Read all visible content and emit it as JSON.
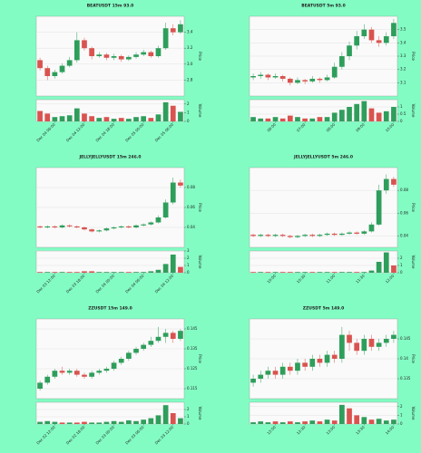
{
  "chart_data": [
    {
      "type": "candlestick",
      "title": "BEATUSDT 15m 93.0",
      "ylabel": "Price",
      "y2label": "Volume",
      "up_color": "#2e9e5b",
      "down_color": "#d9534f",
      "grid": true,
      "categories": [
        null,
        null,
        "Dec 04 06:00",
        null,
        null,
        null,
        "Dec 04 12:00",
        null,
        null,
        null,
        "Dec 04 18:00",
        null,
        null,
        null,
        "Dec 05 00:00",
        null,
        null,
        null,
        "Dec 05 06:00",
        null
      ],
      "open": [
        3.05,
        2.95,
        2.85,
        2.9,
        2.98,
        3.05,
        3.3,
        3.2,
        3.1,
        3.12,
        3.08,
        3.1,
        3.06,
        3.09,
        3.12,
        3.15,
        3.1,
        3.2,
        3.45,
        3.4
      ],
      "high": [
        3.08,
        2.98,
        2.93,
        3.01,
        3.09,
        3.4,
        3.33,
        3.22,
        3.15,
        3.14,
        3.13,
        3.12,
        3.11,
        3.15,
        3.18,
        3.17,
        3.23,
        3.52,
        3.5,
        3.55
      ],
      "low": [
        2.92,
        2.8,
        2.82,
        2.88,
        2.96,
        3.02,
        3.17,
        3.06,
        3.08,
        3.05,
        3.05,
        3.03,
        3.04,
        3.07,
        3.1,
        3.08,
        3.08,
        3.18,
        3.36,
        3.38
      ],
      "close": [
        2.95,
        2.85,
        2.9,
        2.98,
        3.05,
        3.3,
        3.2,
        3.1,
        3.12,
        3.08,
        3.1,
        3.06,
        3.09,
        3.12,
        3.15,
        3.1,
        3.2,
        3.45,
        3.4,
        3.5
      ],
      "volume": [
        1.2,
        0.9,
        0.5,
        0.6,
        0.7,
        1.5,
        0.9,
        0.6,
        0.4,
        0.5,
        0.3,
        0.4,
        0.3,
        0.5,
        0.6,
        0.4,
        0.8,
        2.2,
        1.8,
        1.1
      ],
      "ylim": [
        2.6,
        3.6
      ],
      "yticks": [
        2.8,
        {
          "value": 3,
          "label": "3.0"
        },
        3.2,
        3.4
      ],
      "y2lim": [
        0,
        2.5
      ],
      "y2ticks": [
        0,
        1,
        2
      ]
    },
    {
      "type": "candlestick",
      "title": "BEATUSDT 5m 93.0",
      "ylabel": "Price",
      "y2label": "Volume",
      "up_color": "#2e9e5b",
      "down_color": "#d9534f",
      "grid": true,
      "categories": [
        null,
        null,
        null,
        "06:00",
        null,
        null,
        null,
        "07:00",
        null,
        null,
        null,
        "08:00",
        null,
        null,
        null,
        "09:00",
        null,
        null,
        null,
        "10:00"
      ],
      "open": [
        3.14,
        3.15,
        3.16,
        3.14,
        3.15,
        3.13,
        3.1,
        3.12,
        3.11,
        3.13,
        3.12,
        3.14,
        3.22,
        3.3,
        3.38,
        3.45,
        3.5,
        3.42,
        3.4,
        3.45
      ],
      "high": [
        3.17,
        3.18,
        3.17,
        3.17,
        3.16,
        3.14,
        3.14,
        3.13,
        3.15,
        3.14,
        3.16,
        3.25,
        3.33,
        3.41,
        3.49,
        3.54,
        3.52,
        3.45,
        3.48,
        3.58
      ],
      "low": [
        3.12,
        3.13,
        3.12,
        3.13,
        3.11,
        3.08,
        3.09,
        3.09,
        3.1,
        3.1,
        3.11,
        3.13,
        3.2,
        3.27,
        3.35,
        3.43,
        3.4,
        3.37,
        3.38,
        3.43
      ],
      "close": [
        3.15,
        3.16,
        3.14,
        3.15,
        3.13,
        3.1,
        3.12,
        3.11,
        3.13,
        3.12,
        3.14,
        3.22,
        3.3,
        3.38,
        3.45,
        3.5,
        3.42,
        3.4,
        3.45,
        3.55
      ],
      "volume": [
        0.3,
        0.2,
        0.2,
        0.3,
        0.2,
        0.4,
        0.3,
        0.2,
        0.2,
        0.3,
        0.3,
        0.6,
        0.8,
        1.0,
        1.2,
        1.4,
        0.9,
        0.6,
        0.7,
        1.0
      ],
      "ylim": [
        3.0,
        3.6
      ],
      "yticks": [
        3.1,
        3.2,
        3.3,
        3.4,
        3.5
      ],
      "y2lim": [
        0,
        1.5
      ],
      "y2ticks": [
        0,
        0.5,
        1
      ]
    },
    {
      "type": "candlestick",
      "title": "JELLYJELLYUSDT 15m 246.0",
      "ylabel": "Price",
      "y2label": "Volume",
      "up_color": "#2e9e5b",
      "down_color": "#d9534f",
      "grid": true,
      "categories": [
        null,
        null,
        "Dec 03 12:00",
        null,
        null,
        null,
        "Dec 03 18:00",
        null,
        null,
        null,
        "Dec 04 00:00",
        null,
        null,
        null,
        "Dec 04 06:00",
        null,
        null,
        null,
        "Dec 04 12:00",
        null
      ],
      "open": [
        0.041,
        0.04,
        0.041,
        0.04,
        0.042,
        0.041,
        0.04,
        0.038,
        0.036,
        0.037,
        0.039,
        0.04,
        0.041,
        0.04,
        0.042,
        0.043,
        0.045,
        0.05,
        0.065,
        0.085
      ],
      "high": [
        0.042,
        0.042,
        0.042,
        0.043,
        0.043,
        0.042,
        0.041,
        0.039,
        0.038,
        0.04,
        0.041,
        0.042,
        0.042,
        0.043,
        0.044,
        0.046,
        0.052,
        0.068,
        0.09,
        0.088
      ],
      "low": [
        0.039,
        0.039,
        0.039,
        0.039,
        0.04,
        0.039,
        0.037,
        0.035,
        0.035,
        0.036,
        0.038,
        0.039,
        0.039,
        0.039,
        0.041,
        0.042,
        0.044,
        0.049,
        0.063,
        0.08
      ],
      "close": [
        0.04,
        0.041,
        0.04,
        0.042,
        0.041,
        0.04,
        0.038,
        0.036,
        0.037,
        0.039,
        0.04,
        0.041,
        0.04,
        0.042,
        0.043,
        0.045,
        0.05,
        0.065,
        0.085,
        0.082
      ],
      "volume": [
        0.1,
        0.1,
        0.1,
        0.1,
        0.1,
        0.1,
        0.2,
        0.2,
        0.1,
        0.1,
        0.1,
        0.1,
        0.1,
        0.1,
        0.1,
        0.2,
        0.4,
        1.2,
        2.5,
        0.8
      ],
      "ylim": [
        0.02,
        0.1
      ],
      "yticks": [
        0.04,
        0.06,
        0.08
      ],
      "y2lim": [
        0,
        3
      ],
      "y2ticks": [
        0,
        1,
        2,
        3
      ]
    },
    {
      "type": "candlestick",
      "title": "JELLYJELLYUSDT 5m 246.0",
      "ylabel": "Price",
      "y2label": "Volume",
      "up_color": "#2e9e5b",
      "down_color": "#d9534f",
      "grid": true,
      "categories": [
        null,
        null,
        null,
        "10:00",
        null,
        null,
        null,
        "10:30",
        null,
        null,
        null,
        "11:00",
        null,
        null,
        null,
        "11:30",
        null,
        null,
        null,
        "12:00"
      ],
      "open": [
        0.041,
        0.04,
        0.041,
        0.04,
        0.041,
        0.04,
        0.039,
        0.04,
        0.041,
        0.04,
        0.041,
        0.042,
        0.041,
        0.042,
        0.043,
        0.042,
        0.044,
        0.05,
        0.08,
        0.09
      ],
      "high": [
        0.042,
        0.042,
        0.042,
        0.042,
        0.042,
        0.041,
        0.041,
        0.042,
        0.042,
        0.042,
        0.043,
        0.043,
        0.043,
        0.044,
        0.044,
        0.045,
        0.052,
        0.085,
        0.094,
        0.092
      ],
      "low": [
        0.039,
        0.039,
        0.039,
        0.039,
        0.039,
        0.038,
        0.038,
        0.039,
        0.039,
        0.039,
        0.04,
        0.04,
        0.04,
        0.041,
        0.041,
        0.041,
        0.043,
        0.049,
        0.077,
        0.083
      ],
      "close": [
        0.04,
        0.041,
        0.04,
        0.041,
        0.04,
        0.039,
        0.04,
        0.041,
        0.04,
        0.041,
        0.042,
        0.041,
        0.042,
        0.043,
        0.042,
        0.044,
        0.05,
        0.08,
        0.09,
        0.085
      ],
      "volume": [
        0.1,
        0.1,
        0.1,
        0.1,
        0.1,
        0.1,
        0.1,
        0.1,
        0.1,
        0.1,
        0.1,
        0.1,
        0.1,
        0.1,
        0.1,
        0.1,
        0.3,
        1.5,
        2.8,
        1.0
      ],
      "ylim": [
        0.03,
        0.1
      ],
      "yticks": [
        0.04,
        0.06,
        0.08
      ],
      "y2lim": [
        0,
        3
      ],
      "y2ticks": [
        0,
        1,
        2
      ]
    },
    {
      "type": "candlestick",
      "title": "ZZUSDT 15m 149.0",
      "ylabel": "Price",
      "y2label": "Volume",
      "up_color": "#2e9e5b",
      "down_color": "#d9534f",
      "grid": true,
      "categories": [
        null,
        null,
        "Dec 02 12:00",
        null,
        null,
        null,
        "Dec 02 18:00",
        null,
        null,
        null,
        "Dec 03 00:00",
        null,
        null,
        null,
        "Dec 03 06:00",
        null,
        null,
        null,
        "Dec 03 12:00",
        null
      ],
      "open": [
        0.115,
        0.118,
        0.121,
        0.124,
        0.123,
        0.124,
        0.122,
        0.121,
        0.123,
        0.124,
        0.125,
        0.128,
        0.13,
        0.133,
        0.135,
        0.137,
        0.139,
        0.141,
        0.143,
        0.14
      ],
      "high": [
        0.119,
        0.122,
        0.125,
        0.126,
        0.125,
        0.125,
        0.123,
        0.124,
        0.125,
        0.126,
        0.129,
        0.131,
        0.134,
        0.136,
        0.138,
        0.141,
        0.146,
        0.145,
        0.144,
        0.145
      ],
      "low": [
        0.114,
        0.117,
        0.12,
        0.122,
        0.122,
        0.121,
        0.12,
        0.12,
        0.122,
        0.123,
        0.124,
        0.127,
        0.129,
        0.132,
        0.134,
        0.136,
        0.138,
        0.138,
        0.138,
        0.139
      ],
      "close": [
        0.118,
        0.121,
        0.124,
        0.123,
        0.124,
        0.122,
        0.121,
        0.123,
        0.124,
        0.125,
        0.128,
        0.13,
        0.133,
        0.135,
        0.137,
        0.139,
        0.141,
        0.143,
        0.14,
        0.144
      ],
      "volume": [
        0.3,
        0.4,
        0.3,
        0.2,
        0.2,
        0.2,
        0.3,
        0.2,
        0.2,
        0.3,
        0.4,
        0.3,
        0.5,
        0.4,
        0.6,
        0.8,
        1.2,
        2.6,
        1.5,
        0.8
      ],
      "ylim": [
        0.11,
        0.15
      ],
      "yticks": [
        0.115,
        0.125,
        0.135,
        0.145
      ],
      "y2lim": [
        0,
        3
      ],
      "y2ticks": [
        0,
        1,
        2
      ]
    },
    {
      "type": "candlestick",
      "title": "ZZUSDT 5m 149.0",
      "ylabel": "Price",
      "y2label": "Volume",
      "up_color": "#2e9e5b",
      "down_color": "#d9534f",
      "grid": true,
      "categories": [
        null,
        null,
        null,
        "12:00",
        null,
        null,
        null,
        "12:30",
        null,
        null,
        null,
        "13:00",
        null,
        null,
        null,
        "13:30",
        null,
        null,
        null,
        "14:00"
      ],
      "open": [
        0.134,
        0.135,
        0.136,
        0.137,
        0.136,
        0.138,
        0.137,
        0.139,
        0.138,
        0.14,
        0.139,
        0.141,
        0.14,
        0.146,
        0.144,
        0.142,
        0.145,
        0.143,
        0.144,
        0.145
      ],
      "high": [
        0.136,
        0.137,
        0.138,
        0.138,
        0.139,
        0.139,
        0.14,
        0.14,
        0.141,
        0.141,
        0.142,
        0.142,
        0.148,
        0.147,
        0.145,
        0.146,
        0.146,
        0.145,
        0.146,
        0.147
      ],
      "low": [
        0.133,
        0.134,
        0.135,
        0.135,
        0.135,
        0.136,
        0.136,
        0.137,
        0.137,
        0.138,
        0.138,
        0.139,
        0.139,
        0.142,
        0.141,
        0.141,
        0.142,
        0.142,
        0.143,
        0.144
      ],
      "close": [
        0.135,
        0.136,
        0.137,
        0.136,
        0.138,
        0.137,
        0.139,
        0.138,
        0.14,
        0.139,
        0.141,
        0.14,
        0.146,
        0.144,
        0.142,
        0.145,
        0.143,
        0.144,
        0.145,
        0.146
      ],
      "volume": [
        0.2,
        0.3,
        0.2,
        0.3,
        0.2,
        0.3,
        0.2,
        0.3,
        0.4,
        0.3,
        0.5,
        0.4,
        2.2,
        1.8,
        1.0,
        0.8,
        0.5,
        0.6,
        0.4,
        0.5
      ],
      "ylim": [
        0.13,
        0.15
      ],
      "yticks": [
        0.135,
        0.14,
        0.145
      ],
      "y2lim": [
        0,
        2.5
      ],
      "y2ticks": [
        0,
        1,
        2
      ]
    }
  ]
}
